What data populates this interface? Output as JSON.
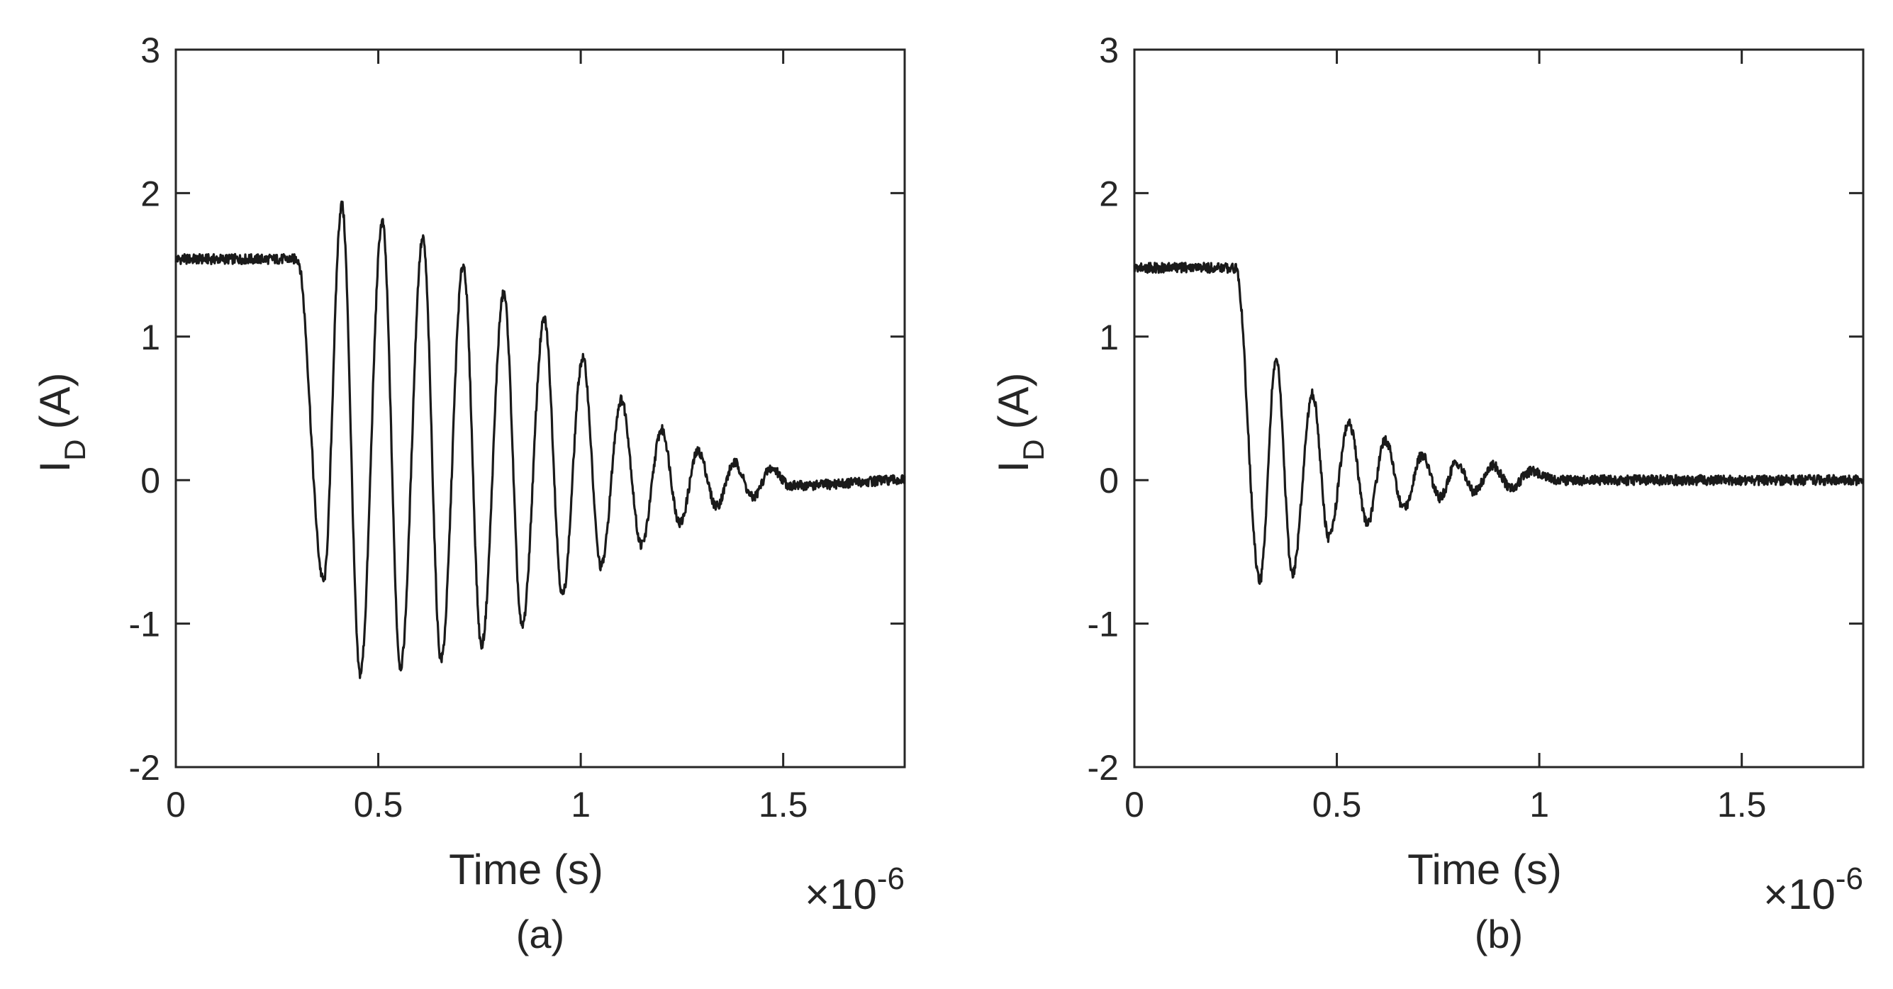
{
  "chart_data": [
    {
      "type": "line",
      "panel_label": "(a)",
      "xlabel": "Time (s)",
      "ylabel_main": "I",
      "ylabel_sub": "D",
      "ylabel_unit": "(A)",
      "x_exponent_prefix": "×10",
      "x_exponent": "-6",
      "xlim": [
        0,
        1.8
      ],
      "ylim": [
        -2,
        3
      ],
      "xticks": [
        0,
        0.5,
        1,
        1.5
      ],
      "yticks": [
        -2,
        -1,
        0,
        1,
        2,
        3
      ],
      "xtick_labels": [
        "0",
        "0.5",
        "1",
        "1.5"
      ],
      "ytick_labels": [
        "-2",
        "-1",
        "0",
        "1",
        "2",
        "3"
      ],
      "grid": false,
      "color": "#1a1a1a",
      "series": [
        {
          "x": [
            0,
            0.3,
            0.365,
            0.41,
            0.455,
            0.51,
            0.555,
            0.61,
            0.655,
            0.71,
            0.755,
            0.81,
            0.855,
            0.91,
            0.955,
            1.005,
            1.05,
            1.1,
            1.15,
            1.2,
            1.245,
            1.29,
            1.335,
            1.38,
            1.425,
            1.47,
            1.52,
            1.8
          ],
          "y": [
            1.54,
            1.54,
            -0.7,
            1.92,
            -1.35,
            1.8,
            -1.3,
            1.68,
            -1.25,
            1.5,
            -1.15,
            1.3,
            -1.02,
            1.12,
            -0.8,
            0.85,
            -0.6,
            0.56,
            -0.45,
            0.35,
            -0.3,
            0.2,
            -0.18,
            0.12,
            -0.12,
            0.08,
            -0.04,
            0.0
          ]
        }
      ]
    },
    {
      "type": "line",
      "panel_label": "(b)",
      "xlabel": "Time (s)",
      "ylabel_main": "I",
      "ylabel_sub": "D",
      "ylabel_unit": "(A)",
      "x_exponent_prefix": "×10",
      "x_exponent": "-6",
      "xlim": [
        0,
        1.8
      ],
      "ylim": [
        -2,
        3
      ],
      "xticks": [
        0,
        0.5,
        1,
        1.5
      ],
      "yticks": [
        -2,
        -1,
        0,
        1,
        2,
        3
      ],
      "xtick_labels": [
        "0",
        "0.5",
        "1",
        "1.5"
      ],
      "ytick_labels": [
        "-2",
        "-1",
        "0",
        "1",
        "2",
        "3"
      ],
      "grid": false,
      "color": "#1a1a1a",
      "series": [
        {
          "x": [
            0,
            0.25,
            0.31,
            0.35,
            0.39,
            0.44,
            0.48,
            0.53,
            0.575,
            0.62,
            0.665,
            0.71,
            0.755,
            0.795,
            0.84,
            0.885,
            0.93,
            0.98,
            1.05,
            1.8
          ],
          "y": [
            1.48,
            1.48,
            -0.7,
            0.84,
            -0.65,
            0.6,
            -0.4,
            0.4,
            -0.3,
            0.28,
            -0.2,
            0.17,
            -0.12,
            0.12,
            -0.08,
            0.1,
            -0.05,
            0.06,
            0.0,
            0.0
          ]
        }
      ]
    }
  ]
}
